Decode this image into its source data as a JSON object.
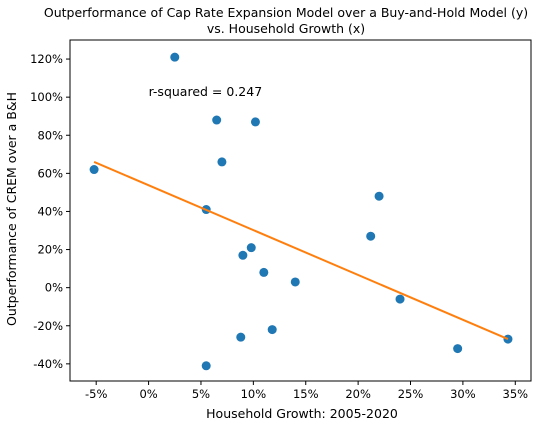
{
  "chart_data": {
    "type": "scatter",
    "title": "Outperformance of Cap Rate Expansion Model over a Buy-and-Hold Model (y)",
    "subtitle": "vs. Household Growth (x)",
    "xlabel": "Household Growth: 2005-2020",
    "ylabel": "Outperformance of CREM over a B&H",
    "xlim": [
      -0.075,
      0.365
    ],
    "ylim": [
      -0.49,
      1.3
    ],
    "xticks": [
      -0.05,
      0,
      0.05,
      0.1,
      0.15,
      0.2,
      0.25,
      0.3,
      0.35
    ],
    "xtick_labels": [
      "-5%",
      "0%",
      "5%",
      "10%",
      "15%",
      "20%",
      "25%",
      "30%",
      "35%"
    ],
    "yticks": [
      -0.4,
      -0.2,
      0,
      0.2,
      0.4,
      0.6,
      0.8,
      1.0,
      1.2
    ],
    "ytick_labels": [
      "-40%",
      "-20%",
      "0%",
      "20%",
      "40%",
      "60%",
      "80%",
      "100%",
      "120%"
    ],
    "grid": false,
    "annotation": "r-squared = 0.247",
    "point_color": "#1f77b4",
    "line_color": "#ff7f0e",
    "points": [
      {
        "x": -0.052,
        "y": 0.62
      },
      {
        "x": 0.025,
        "y": 1.21
      },
      {
        "x": 0.055,
        "y": -0.41
      },
      {
        "x": 0.055,
        "y": 0.41
      },
      {
        "x": 0.065,
        "y": 0.88
      },
      {
        "x": 0.07,
        "y": 0.66
      },
      {
        "x": 0.088,
        "y": -0.26
      },
      {
        "x": 0.09,
        "y": 0.17
      },
      {
        "x": 0.098,
        "y": 0.21
      },
      {
        "x": 0.102,
        "y": 0.87
      },
      {
        "x": 0.11,
        "y": 0.08
      },
      {
        "x": 0.118,
        "y": -0.22
      },
      {
        "x": 0.14,
        "y": 0.03
      },
      {
        "x": 0.212,
        "y": 0.27
      },
      {
        "x": 0.22,
        "y": 0.48
      },
      {
        "x": 0.24,
        "y": -0.06
      },
      {
        "x": 0.295,
        "y": -0.32
      },
      {
        "x": 0.343,
        "y": -0.27
      }
    ],
    "fit_line": {
      "x": [
        -0.052,
        0.343
      ],
      "y": [
        0.66,
        -0.27
      ]
    }
  }
}
